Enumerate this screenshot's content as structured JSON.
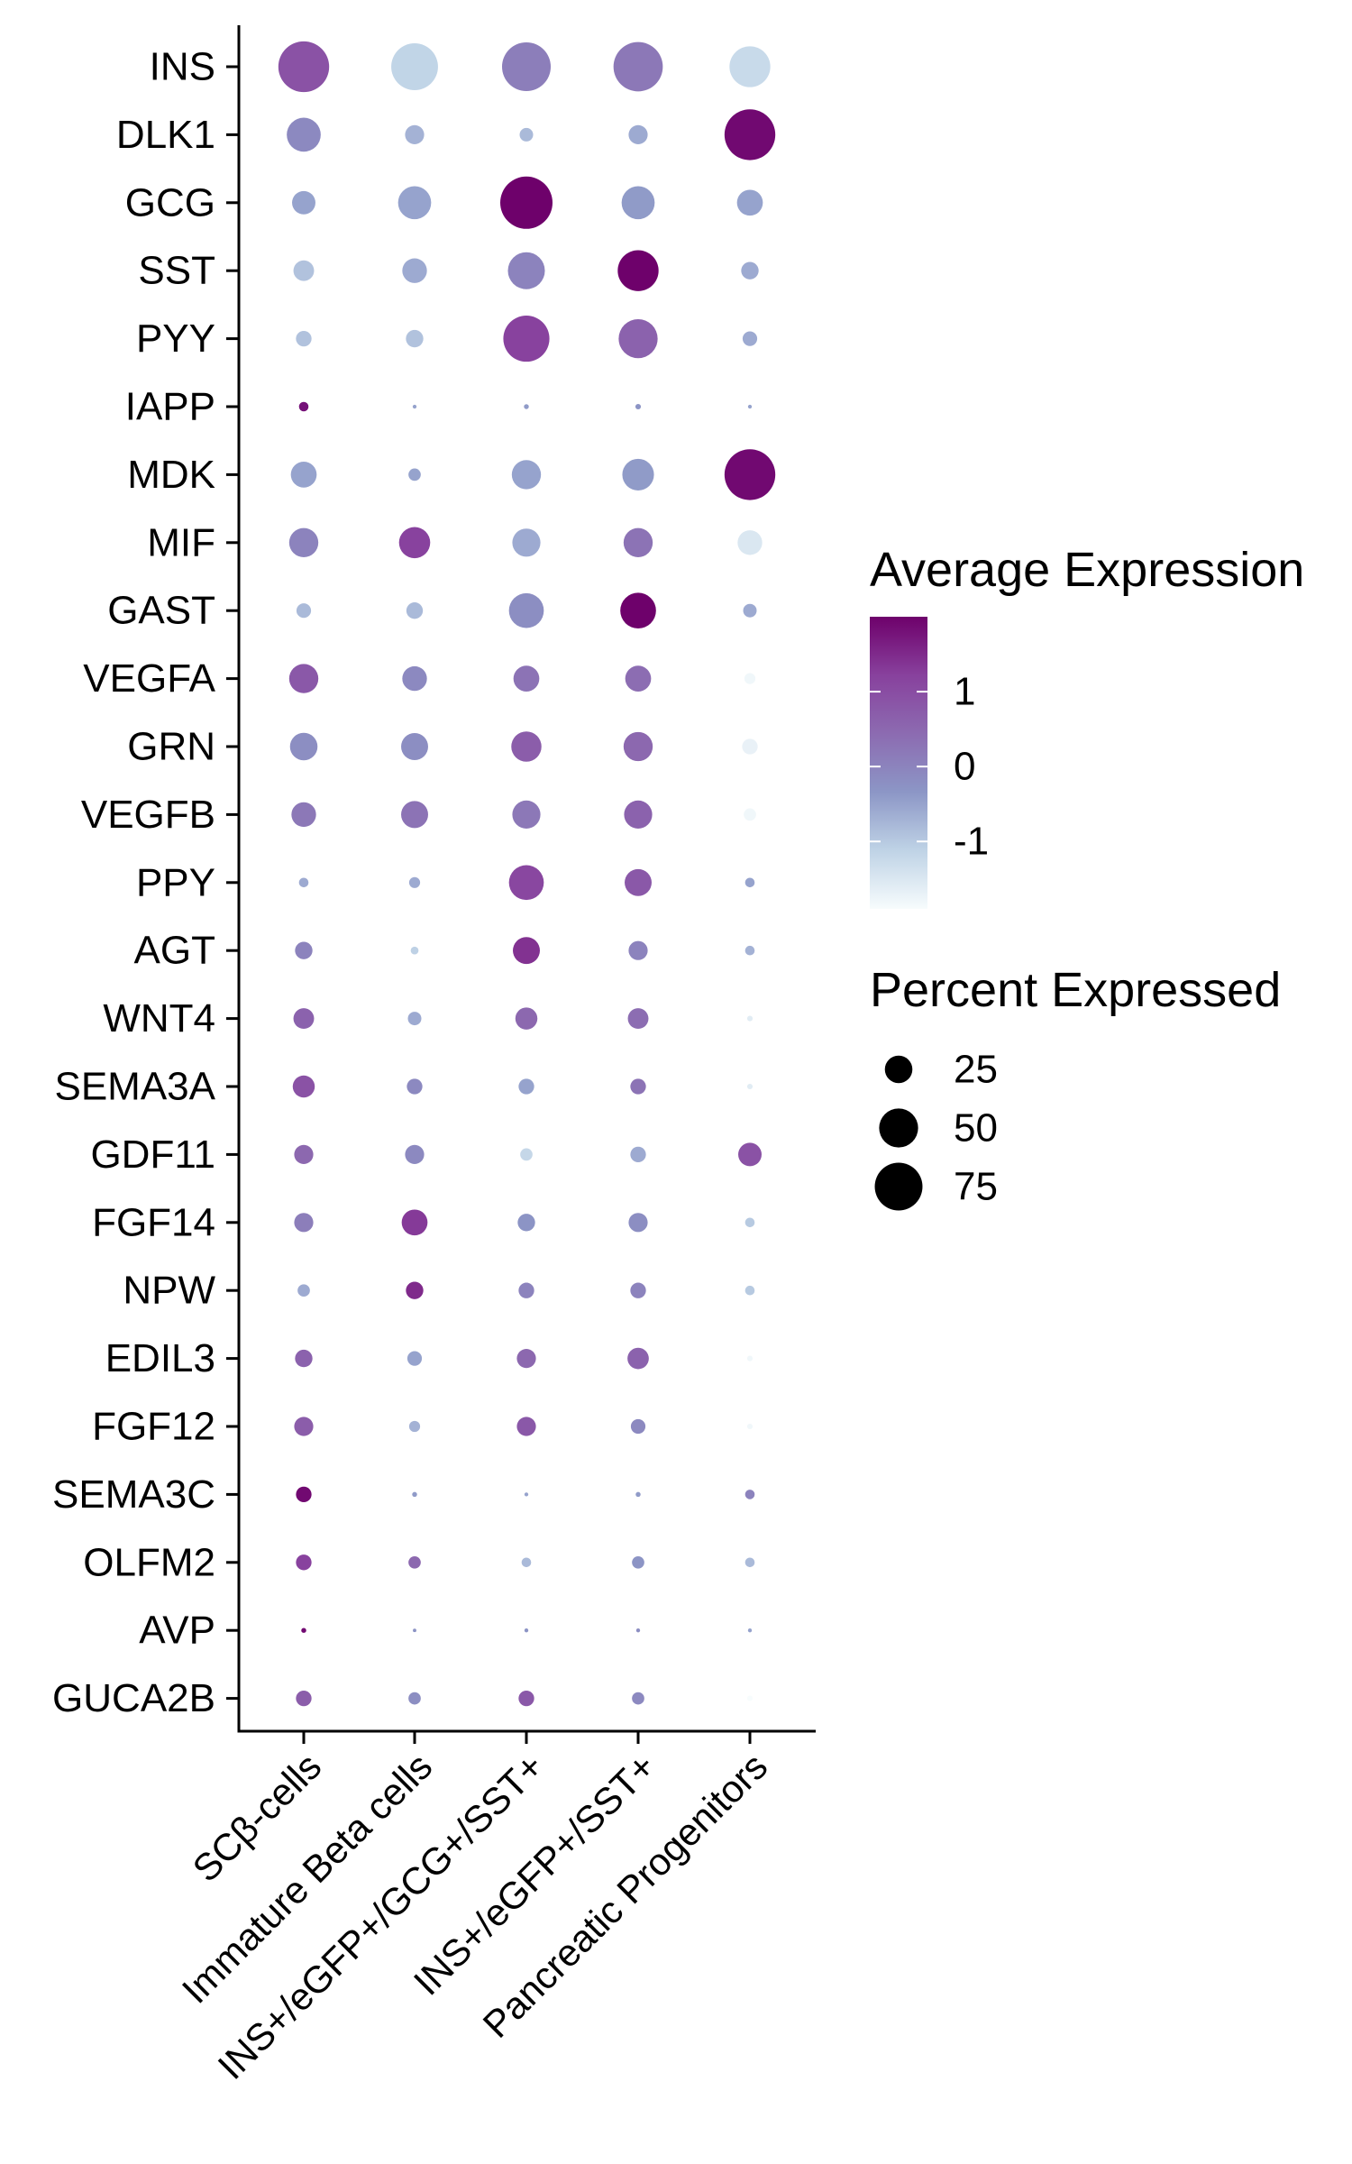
{
  "chart_data": {
    "type": "dotplot",
    "categories": [
      "SCβ-cells",
      "Immature Beta cells",
      "INS+/eGFP+/GCG+/SST+",
      "INS+/eGFP+/SST+",
      "Pancreatic Progenitors"
    ],
    "genes": [
      "INS",
      "DLK1",
      "GCG",
      "SST",
      "PYY",
      "IAPP",
      "MDK",
      "MIF",
      "GAST",
      "VEGFA",
      "GRN",
      "VEGFB",
      "PPY",
      "AGT",
      "WNT4",
      "SEMA3A",
      "GDF11",
      "FGF14",
      "NPW",
      "EDIL3",
      "FGF12",
      "SEMA3C",
      "OLFM2",
      "AVP",
      "GUCA2B"
    ],
    "percent_expressed": [
      [
        85,
        72,
        78,
        80,
        55
      ],
      [
        38,
        12,
        6,
        12,
        85
      ],
      [
        18,
        36,
        90,
        36,
        22
      ],
      [
        14,
        20,
        45,
        55,
        10
      ],
      [
        8,
        10,
        70,
        50,
        7
      ],
      [
        3,
        0.5,
        0.8,
        1,
        0.5
      ],
      [
        22,
        5,
        28,
        33,
        85
      ],
      [
        28,
        32,
        26,
        28,
        20
      ],
      [
        7,
        9,
        40,
        42,
        6
      ],
      [
        28,
        20,
        22,
        22,
        4
      ],
      [
        25,
        24,
        30,
        28,
        8
      ],
      [
        20,
        24,
        26,
        26,
        5
      ],
      [
        3,
        4,
        40,
        24,
        3
      ],
      [
        10,
        2,
        24,
        12,
        3
      ],
      [
        14,
        6,
        16,
        14,
        1
      ],
      [
        16,
        8,
        8,
        8,
        1
      ],
      [
        12,
        12,
        5,
        8,
        18
      ],
      [
        12,
        22,
        10,
        12,
        3
      ],
      [
        5,
        10,
        8,
        8,
        3
      ],
      [
        10,
        7,
        12,
        15,
        1
      ],
      [
        12,
        4,
        12,
        7,
        1
      ],
      [
        8,
        0.8,
        0.5,
        0.8,
        3
      ],
      [
        8,
        5,
        3,
        5,
        3
      ],
      [
        0.8,
        0.4,
        0.5,
        0.5,
        0.5
      ],
      [
        8,
        5,
        8,
        5,
        1
      ]
    ],
    "average_expression": [
      [
        0.9,
        -1.15,
        0.1,
        0.2,
        -1.25
      ],
      [
        -0.1,
        -0.7,
        -0.8,
        -0.6,
        1.9
      ],
      [
        -0.5,
        -0.5,
        2.0,
        -0.4,
        -0.5
      ],
      [
        -0.9,
        -0.6,
        0.0,
        2.0,
        -0.6
      ],
      [
        -0.9,
        -0.9,
        1.2,
        0.6,
        -0.6
      ],
      [
        1.8,
        -0.5,
        -0.4,
        -0.3,
        -0.5
      ],
      [
        -0.5,
        -0.5,
        -0.5,
        -0.4,
        1.9
      ],
      [
        0.0,
        1.2,
        -0.6,
        0.3,
        -1.5
      ],
      [
        -0.8,
        -0.8,
        -0.2,
        2.0,
        -0.6
      ],
      [
        0.8,
        -0.1,
        0.3,
        0.4,
        -1.8
      ],
      [
        -0.2,
        -0.2,
        0.7,
        0.5,
        -1.7
      ],
      [
        0.2,
        0.3,
        0.2,
        0.6,
        -1.8
      ],
      [
        -0.6,
        -0.6,
        1.1,
        0.8,
        -0.5
      ],
      [
        0.0,
        -1.1,
        1.4,
        0.0,
        -0.7
      ],
      [
        0.6,
        -0.6,
        0.5,
        0.4,
        -1.6
      ],
      [
        0.9,
        -0.1,
        -0.5,
        0.3,
        -1.6
      ],
      [
        0.5,
        -0.1,
        -1.2,
        -0.6,
        0.9
      ],
      [
        0.1,
        1.3,
        -0.3,
        -0.2,
        -1.0
      ],
      [
        -0.6,
        1.5,
        0.0,
        0.0,
        -1.0
      ],
      [
        0.6,
        -0.5,
        0.5,
        0.6,
        -1.8
      ],
      [
        0.7,
        -0.7,
        0.8,
        -0.1,
        -1.8
      ],
      [
        1.9,
        -0.4,
        -0.5,
        -0.4,
        0.0
      ],
      [
        1.2,
        0.5,
        -0.8,
        -0.3,
        -0.8
      ],
      [
        1.9,
        -0.3,
        -0.3,
        -0.2,
        -0.5
      ],
      [
        0.7,
        -0.2,
        0.8,
        -0.1,
        -1.9
      ]
    ],
    "color_scale": {
      "title": "Average Expression",
      "stops": [
        "#f7fcfd",
        "#bfd3e6",
        "#8c96c6",
        "#8c6bb1",
        "#88419d",
        "#6e016b"
      ],
      "domain": [
        -1.9,
        2.0
      ],
      "ticks": [
        1,
        0,
        -1
      ],
      "tick_labels": [
        "1",
        "0",
        "-1"
      ]
    },
    "size_scale": {
      "title": "Percent Expressed",
      "max_percent": 90,
      "ticks": [
        25,
        50,
        75
      ],
      "tick_labels": [
        "25",
        "50",
        "75"
      ]
    },
    "legend_placement": "right",
    "grid": false
  }
}
